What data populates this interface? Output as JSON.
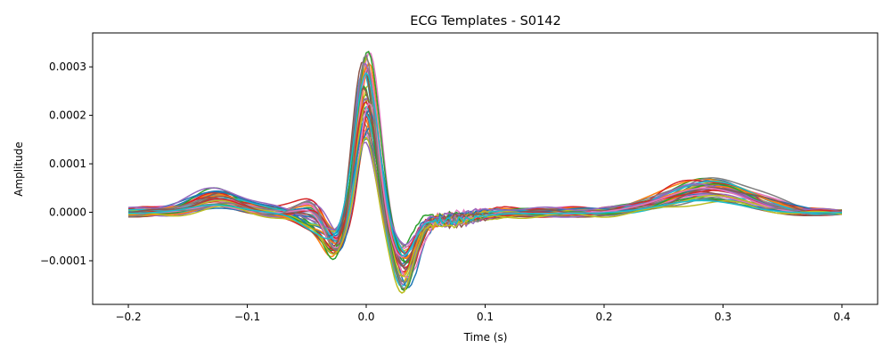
{
  "chart_data": {
    "type": "line",
    "title": "ECG Templates - S0142",
    "xlabel": "Time (s)",
    "ylabel": "Amplitude",
    "xlim": [
      -0.23,
      0.43
    ],
    "ylim": [
      -0.00019,
      0.00037
    ],
    "x_ticks": [
      -0.2,
      -0.1,
      0.0,
      0.1,
      0.2,
      0.3,
      0.4
    ],
    "x_tick_labels": [
      "−0.2",
      "−0.1",
      "0.0",
      "0.1",
      "0.2",
      "0.3",
      "0.4"
    ],
    "y_ticks": [
      -0.0001,
      0.0,
      0.0001,
      0.0002,
      0.0003
    ],
    "y_tick_labels": [
      "−0.0001",
      "0.0000",
      "0.0001",
      "0.0002",
      "0.0003"
    ],
    "grid": false,
    "legend": "none",
    "colors": [
      "#1f77b4",
      "#ff7f0e",
      "#2ca02c",
      "#d62728",
      "#9467bd",
      "#8c564b",
      "#e377c2",
      "#7f7f7f",
      "#bcbd22",
      "#17becf"
    ],
    "template_model": {
      "x_range": [
        -0.2,
        0.4
      ],
      "num_templates": 40,
      "components": [
        {
          "wave": "P",
          "center": -0.125,
          "width": 0.02,
          "amp_min": 1.5e-05,
          "amp_max": 4.5e-05
        },
        {
          "wave": "Q",
          "center": -0.025,
          "width": 0.009,
          "amp_min": -9e-05,
          "amp_max": -4e-05
        },
        {
          "wave": "R",
          "center": 0.0,
          "width": 0.0085,
          "amp_min": 0.00015,
          "amp_max": 0.000345
        },
        {
          "wave": "S",
          "center": 0.032,
          "width": 0.01,
          "amp_min": -0.00016,
          "amp_max": -7e-05
        },
        {
          "wave": "T",
          "center": 0.29,
          "width": 0.035,
          "amp_min": 2e-05,
          "amp_max": 7e-05
        }
      ]
    }
  }
}
